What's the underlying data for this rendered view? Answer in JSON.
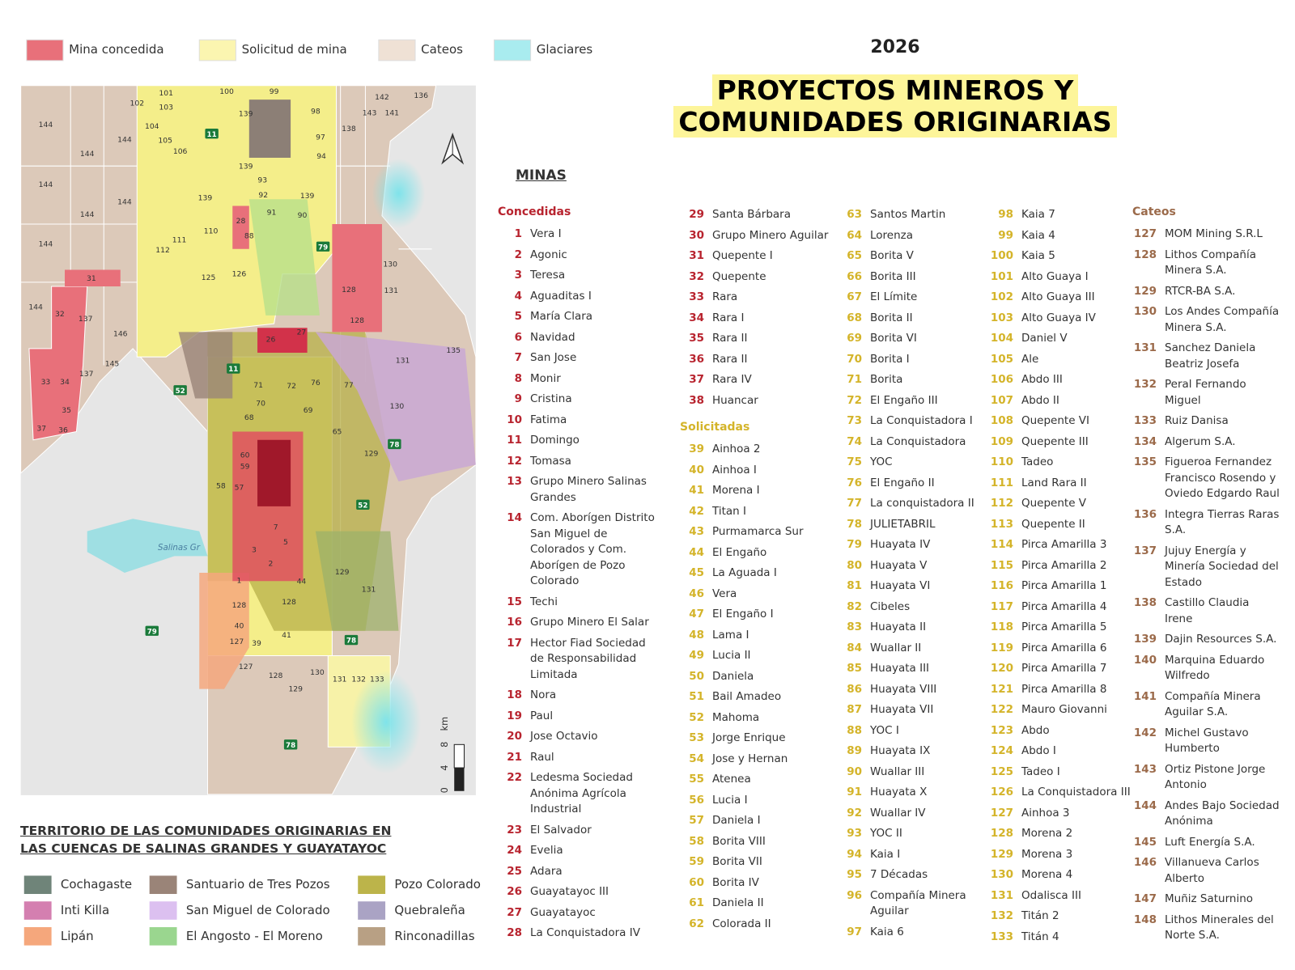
{
  "legend_top": [
    {
      "label": "Mina concedida",
      "color": "#e8707a"
    },
    {
      "label": "Solicitud de mina",
      "color": "#fbf5b0"
    },
    {
      "label": "Cateos",
      "color": "#efe1d5"
    },
    {
      "label": "Glaciares",
      "color": "#a9ecef"
    }
  ],
  "header": {
    "year": "2026",
    "title_lines": [
      "PROYECTOS MINEROS Y",
      "COMUNIDADES ORIGINARIAS"
    ]
  },
  "minas": {
    "title": "MINAS",
    "concedidas": {
      "title": "Concedidas",
      "color": "#b8242f",
      "items": [
        {
          "num": 1,
          "name": "Vera I"
        },
        {
          "num": 2,
          "name": "Agonic"
        },
        {
          "num": 3,
          "name": "Teresa"
        },
        {
          "num": 4,
          "name": "Aguaditas I"
        },
        {
          "num": 5,
          "name": "María Clara"
        },
        {
          "num": 6,
          "name": "Navidad"
        },
        {
          "num": 7,
          "name": "San Jose"
        },
        {
          "num": 8,
          "name": "Monir"
        },
        {
          "num": 9,
          "name": "Cristina"
        },
        {
          "num": 10,
          "name": "Fatima"
        },
        {
          "num": 11,
          "name": "Domingo"
        },
        {
          "num": 12,
          "name": "Tomasa"
        },
        {
          "num": 13,
          "name": "Grupo Minero Salinas Grandes"
        },
        {
          "num": 14,
          "name": "Com. Aborígen Distrito San Miguel de Colorados y Com. Aborígen de Pozo Colorado"
        },
        {
          "num": 15,
          "name": "Techi"
        },
        {
          "num": 16,
          "name": "Grupo Minero El Salar"
        },
        {
          "num": 17,
          "name": "Hector Fiad Sociedad de Responsabilidad Limitada"
        },
        {
          "num": 18,
          "name": "Nora"
        },
        {
          "num": 19,
          "name": "Paul"
        },
        {
          "num": 20,
          "name": "Jose Octavio"
        },
        {
          "num": 21,
          "name": "Raul"
        },
        {
          "num": 22,
          "name": "Ledesma Sociedad Anónima Agrícola Industrial"
        },
        {
          "num": 23,
          "name": "El Salvador"
        },
        {
          "num": 24,
          "name": "Evelia"
        },
        {
          "num": 25,
          "name": "Adara"
        },
        {
          "num": 26,
          "name": "Guayatayoc III"
        },
        {
          "num": 27,
          "name": "Guayatayoc"
        },
        {
          "num": 28,
          "name": "La Conquistadora IV"
        },
        {
          "num": 29,
          "name": "Santa Bárbara"
        },
        {
          "num": 30,
          "name": "Grupo Minero Aguilar"
        },
        {
          "num": 31,
          "name": "Quepente I"
        },
        {
          "num": 32,
          "name": "Quepente"
        },
        {
          "num": 33,
          "name": "Rara"
        },
        {
          "num": 34,
          "name": "Rara I"
        },
        {
          "num": 35,
          "name": "Rara II"
        },
        {
          "num": 36,
          "name": "Rara II"
        },
        {
          "num": 37,
          "name": "Rara IV"
        },
        {
          "num": 38,
          "name": "Huancar"
        }
      ]
    },
    "solicitadas": {
      "title": "Solicitadas",
      "color": "#d4b42a",
      "items": [
        {
          "num": 39,
          "name": "Ainhoa 2"
        },
        {
          "num": 40,
          "name": "Ainhoa I"
        },
        {
          "num": 41,
          "name": "Morena I"
        },
        {
          "num": 42,
          "name": "Titan I"
        },
        {
          "num": 43,
          "name": "Purmamarca Sur"
        },
        {
          "num": 44,
          "name": "El Engaño"
        },
        {
          "num": 45,
          "name": "La Aguada I"
        },
        {
          "num": 46,
          "name": "Vera"
        },
        {
          "num": 47,
          "name": "El Engaño I"
        },
        {
          "num": 48,
          "name": "Lama I"
        },
        {
          "num": 49,
          "name": "Lucia II"
        },
        {
          "num": 50,
          "name": "Daniela"
        },
        {
          "num": 51,
          "name": "Bail Amadeo"
        },
        {
          "num": 52,
          "name": "Mahoma"
        },
        {
          "num": 53,
          "name": "Jorge Enrique"
        },
        {
          "num": 54,
          "name": "Jose y Hernan"
        },
        {
          "num": 55,
          "name": "Atenea"
        },
        {
          "num": 56,
          "name": "Lucia I"
        },
        {
          "num": 57,
          "name": "Daniela I"
        },
        {
          "num": 58,
          "name": "Borita VIII"
        },
        {
          "num": 59,
          "name": "Borita VII"
        },
        {
          "num": 60,
          "name": "Borita IV"
        },
        {
          "num": 61,
          "name": "Daniela II"
        },
        {
          "num": 62,
          "name": "Colorada II"
        },
        {
          "num": 63,
          "name": "Santos Martin"
        },
        {
          "num": 64,
          "name": "Lorenza"
        },
        {
          "num": 65,
          "name": "Borita V"
        },
        {
          "num": 66,
          "name": "Borita III"
        },
        {
          "num": 67,
          "name": "El Límite"
        },
        {
          "num": 68,
          "name": "Borita II"
        },
        {
          "num": 69,
          "name": "Borita VI"
        },
        {
          "num": 70,
          "name": "Borita I"
        },
        {
          "num": 71,
          "name": "Borita"
        },
        {
          "num": 72,
          "name": "El Engaño III"
        },
        {
          "num": 73,
          "name": "La Conquistadora I"
        },
        {
          "num": 74,
          "name": "La Conquistadora"
        },
        {
          "num": 75,
          "name": "YOC"
        },
        {
          "num": 76,
          "name": "El Engaño II"
        },
        {
          "num": 77,
          "name": "La conquistadora II"
        },
        {
          "num": 78,
          "name": "JULIETABRIL"
        },
        {
          "num": 79,
          "name": "Huayata IV"
        },
        {
          "num": 80,
          "name": "Huayata V"
        },
        {
          "num": 81,
          "name": "Huayata VI"
        },
        {
          "num": 82,
          "name": "Cibeles"
        },
        {
          "num": 83,
          "name": "Huayata II"
        },
        {
          "num": 84,
          "name": "Wuallar II"
        },
        {
          "num": 85,
          "name": "Huayata III"
        },
        {
          "num": 86,
          "name": "Huayata VIII"
        },
        {
          "num": 87,
          "name": "Huayata VII"
        },
        {
          "num": 88,
          "name": "YOC I"
        },
        {
          "num": 89,
          "name": "Huayata IX"
        },
        {
          "num": 90,
          "name": "Wuallar III"
        },
        {
          "num": 91,
          "name": "Huayata X"
        },
        {
          "num": 92,
          "name": "Wuallar IV"
        },
        {
          "num": 93,
          "name": "YOC II"
        },
        {
          "num": 94,
          "name": "Kaia I"
        },
        {
          "num": 95,
          "name": "7 Décadas"
        },
        {
          "num": 96,
          "name": "Compañía Minera Aguilar"
        },
        {
          "num": 97,
          "name": "Kaia 6"
        },
        {
          "num": 98,
          "name": "Kaia 7"
        },
        {
          "num": 99,
          "name": "Kaia 4"
        },
        {
          "num": 100,
          "name": "Kaia 5"
        },
        {
          "num": 101,
          "name": "Alto Guaya I"
        },
        {
          "num": 102,
          "name": "Alto Guaya III"
        },
        {
          "num": 103,
          "name": "Alto Guaya IV"
        },
        {
          "num": 104,
          "name": "Daniel V"
        },
        {
          "num": 105,
          "name": "Ale"
        },
        {
          "num": 106,
          "name": "Abdo III"
        },
        {
          "num": 107,
          "name": "Abdo II"
        },
        {
          "num": 108,
          "name": "Quepente VI"
        },
        {
          "num": 109,
          "name": "Quepente III"
        },
        {
          "num": 110,
          "name": "Tadeo"
        },
        {
          "num": 111,
          "name": "Land Rara II"
        },
        {
          "num": 112,
          "name": "Quepente V"
        },
        {
          "num": 113,
          "name": "Quepente II"
        },
        {
          "num": 114,
          "name": "Pirca Amarilla 3"
        },
        {
          "num": 115,
          "name": "Pirca Amarilla 2"
        },
        {
          "num": 116,
          "name": "Pirca Amarilla 1"
        },
        {
          "num": 117,
          "name": "Pirca Amarilla 4"
        },
        {
          "num": 118,
          "name": "Pirca Amarilla 5"
        },
        {
          "num": 119,
          "name": "Pirca Amarilla 6"
        },
        {
          "num": 120,
          "name": "Pirca Amarilla 7"
        },
        {
          "num": 121,
          "name": "Pirca Amarilla 8"
        },
        {
          "num": 122,
          "name": "Mauro Giovanni"
        },
        {
          "num": 123,
          "name": "Abdo"
        },
        {
          "num": 124,
          "name": "Abdo I"
        },
        {
          "num": 125,
          "name": "Tadeo I"
        },
        {
          "num": 126,
          "name": "La Conquistadora III"
        },
        {
          "num": 127,
          "name": "Ainhoa 3"
        },
        {
          "num": 128,
          "name": "Morena 2"
        },
        {
          "num": 129,
          "name": "Morena 3"
        },
        {
          "num": 130,
          "name": "Morena 4"
        },
        {
          "num": 131,
          "name": "Odalisca III"
        },
        {
          "num": 132,
          "name": "Titán 2"
        },
        {
          "num": 133,
          "name": "Titán 4"
        }
      ]
    },
    "cateos": {
      "title": "Cateos",
      "color": "#9b6a4a",
      "items": [
        {
          "num": 127,
          "name": "MOM Mining S.R.L"
        },
        {
          "num": 128,
          "name": "Lithos Compañía Minera S.A."
        },
        {
          "num": 129,
          "name": "RTCR-BA S.A."
        },
        {
          "num": 130,
          "name": "Los Andes Compañía Minera S.A."
        },
        {
          "num": 131,
          "name": "Sanchez Daniela Beatriz Josefa"
        },
        {
          "num": 132,
          "name": "Peral Fernando Miguel"
        },
        {
          "num": 133,
          "name": "Ruiz Danisa"
        },
        {
          "num": 134,
          "name": "Algerum S.A."
        },
        {
          "num": 135,
          "name": "Figueroa Fernandez Francisco Rosendo y Oviedo Edgardo Raul"
        },
        {
          "num": 136,
          "name": "Integra Tierras Raras S.A."
        },
        {
          "num": 137,
          "name": "Jujuy Energía y Minería Sociedad del Estado"
        },
        {
          "num": 138,
          "name": "Castillo Claudia Irene"
        },
        {
          "num": 139,
          "name": "Dajin Resources S.A."
        },
        {
          "num": 140,
          "name": "Marquina Eduardo Wilfredo"
        },
        {
          "num": 141,
          "name": "Compañía Minera Aguilar S.A."
        },
        {
          "num": 142,
          "name": "Michel Gustavo Humberto"
        },
        {
          "num": 143,
          "name": "Ortiz Pistone Jorge Antonio"
        },
        {
          "num": 144,
          "name": "Andes Bajo Sociedad Anónima"
        },
        {
          "num": 145,
          "name": "Luft Energía S.A."
        },
        {
          "num": 146,
          "name": "Villanueva Carlos Alberto"
        },
        {
          "num": 147,
          "name": "Muñiz Saturnino"
        },
        {
          "num": 148,
          "name": "Lithos Minerales del Norte S.A."
        }
      ]
    }
  },
  "territorio": {
    "title_lines": [
      "TERRITORIO DE LAS COMUNIDADES ORIGINARIAS EN",
      "LAS CUENCAS DE SALINAS GRANDES Y GUAYATAYOC"
    ],
    "communities": [
      {
        "label": "Cochagaste",
        "color": "#6f8479"
      },
      {
        "label": "Inti Killa",
        "color": "#d47fb0"
      },
      {
        "label": "Lipán",
        "color": "#f5a77c"
      },
      {
        "label": "Santuario de Tres Pozos",
        "color": "#9a8478"
      },
      {
        "label": "San Miguel de Colorado",
        "color": "#dcc0f0"
      },
      {
        "label": "El Angosto - El Moreno",
        "color": "#9ad68f"
      },
      {
        "label": "Pozo Colorado",
        "color": "#bcb44a"
      },
      {
        "label": "Quebraleña",
        "color": "#aaa3c4"
      },
      {
        "label": "Rinconadillas",
        "color": "#b8a084"
      }
    ]
  },
  "map": {
    "place_label": "Salinas Gr",
    "parcel_labels": [
      "144",
      "144",
      "144",
      "144",
      "144",
      "144",
      "144",
      "144",
      "101",
      "100",
      "99",
      "102",
      "103",
      "139",
      "98",
      "142",
      "136",
      "143",
      "141",
      "138",
      "104",
      "105",
      "106",
      "97",
      "94",
      "139",
      "93",
      "92",
      "139",
      "139",
      "28",
      "91",
      "90",
      "110",
      "111",
      "112",
      "88",
      "31",
      "125",
      "126",
      "130",
      "128",
      "131",
      "137",
      "128",
      "26",
      "27",
      "135",
      "131",
      "77",
      "76",
      "72",
      "71",
      "70",
      "69",
      "68",
      "130",
      "129",
      "65",
      "60",
      "59",
      "58",
      "57",
      "7",
      "5",
      "3",
      "2",
      "1",
      "44",
      "128",
      "129",
      "131",
      "128",
      "40",
      "127",
      "39",
      "41",
      "127",
      "128",
      "129",
      "130",
      "131",
      "132",
      "133",
      "33",
      "34",
      "35",
      "37",
      "36",
      "32",
      "145",
      "137",
      "146"
    ],
    "road_labels": [
      "11",
      "79",
      "11",
      "52",
      "78",
      "52",
      "79",
      "78",
      "78"
    ],
    "scale": {
      "ticks": [
        0,
        4,
        8
      ],
      "unit": "km"
    }
  }
}
